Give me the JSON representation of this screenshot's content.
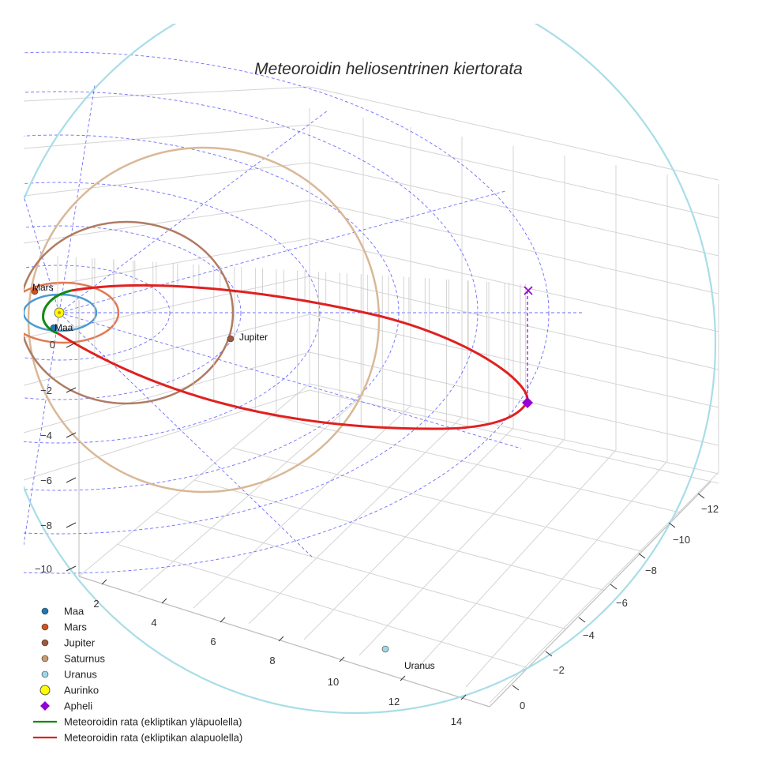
{
  "chart_data": {
    "type": "line",
    "title": "Meteoroidin heliosentrinen kiertorata",
    "axes": {
      "y_ticks": [
        "0",
        "−2",
        "−4",
        "−6",
        "−8",
        "−10"
      ],
      "x_ticks": [
        "2",
        "4",
        "6",
        "8",
        "10",
        "12",
        "14"
      ],
      "z_ticks": [
        "−12",
        "−10",
        "−8",
        "−6",
        "−4",
        "−2",
        "0"
      ]
    },
    "labels": {
      "mars": "Mars",
      "maa": "Maa",
      "jupiter": "Jupiter",
      "uranus": "Uranus"
    },
    "legend": [
      {
        "label": "Maa",
        "kind": "dot",
        "color": "#1f77b4"
      },
      {
        "label": "Mars",
        "kind": "dot",
        "color": "#d2521e"
      },
      {
        "label": "Jupiter",
        "kind": "dot",
        "color": "#9e5a3a"
      },
      {
        "label": "Saturnus",
        "kind": "dot",
        "color": "#c89a6e"
      },
      {
        "label": "Uranus",
        "kind": "dot",
        "color": "#9fd8e6"
      },
      {
        "label": "Aurinko",
        "kind": "dot-large",
        "color": "#ffff00"
      },
      {
        "label": "Apheli",
        "kind": "diamond",
        "color": "#9400d3"
      },
      {
        "label": "Meteoroidin rata (ekliptikan yläpuolella)",
        "kind": "line",
        "color": "#138a13"
      },
      {
        "label": "Meteoroidin rata (ekliptikan alapuolella)",
        "kind": "line",
        "color": "#e02020"
      }
    ],
    "colors": {
      "maa_orbit": "#4a9ad4",
      "mars_orbit": "#e07a52",
      "jupiter_orbit": "#b07b63",
      "saturn_orbit": "#d9b897",
      "uranus_orbit": "#a8dde8",
      "grid_dashed": "#4b4bff",
      "orbit_above": "#138a13",
      "orbit_below": "#e02020",
      "apheli": "#9400d3",
      "sun": "#ffff00"
    }
  }
}
